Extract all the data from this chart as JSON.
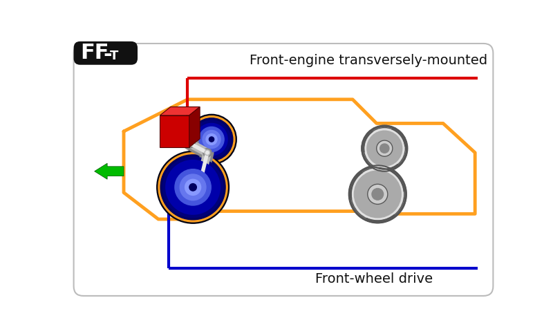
{
  "label_top": "Front-engine transversely-mounted",
  "label_bottom": "Front-wheel drive",
  "badge_ff": "FF",
  "badge_dash": "-",
  "badge_t": "T",
  "bg_color": "#ffffff",
  "card_border_color": "#bbbbbb",
  "orange": "#FFA020",
  "red": "#dd0000",
  "blue": "#0000cc",
  "green": "#00bb00",
  "black": "#111111",
  "dark_bg": "#111111",
  "wbd1": "#000060",
  "wbd2": "#00007a",
  "wbm1": "#0000aa",
  "wbm2": "#2222cc",
  "wbl1": "#4455dd",
  "wbl2": "#6677ee",
  "wbl3": "#8899ff",
  "wgd1": "#333333",
  "wgd2": "#555555",
  "wgm1": "#888888",
  "wgm2": "#aaaaaa",
  "wgl1": "#cccccc",
  "wgl2": "#e0e0e0",
  "eng_front": "#cc0000",
  "eng_top": "#ee3333",
  "eng_side": "#880000",
  "eng_line": "#550000",
  "shaft_light": "#e8e8e8",
  "shaft_mid": "#bbbbbb",
  "shaft_dark": "#888888",
  "label_fontsize": 14,
  "badge_big": 22,
  "badge_small": 13
}
